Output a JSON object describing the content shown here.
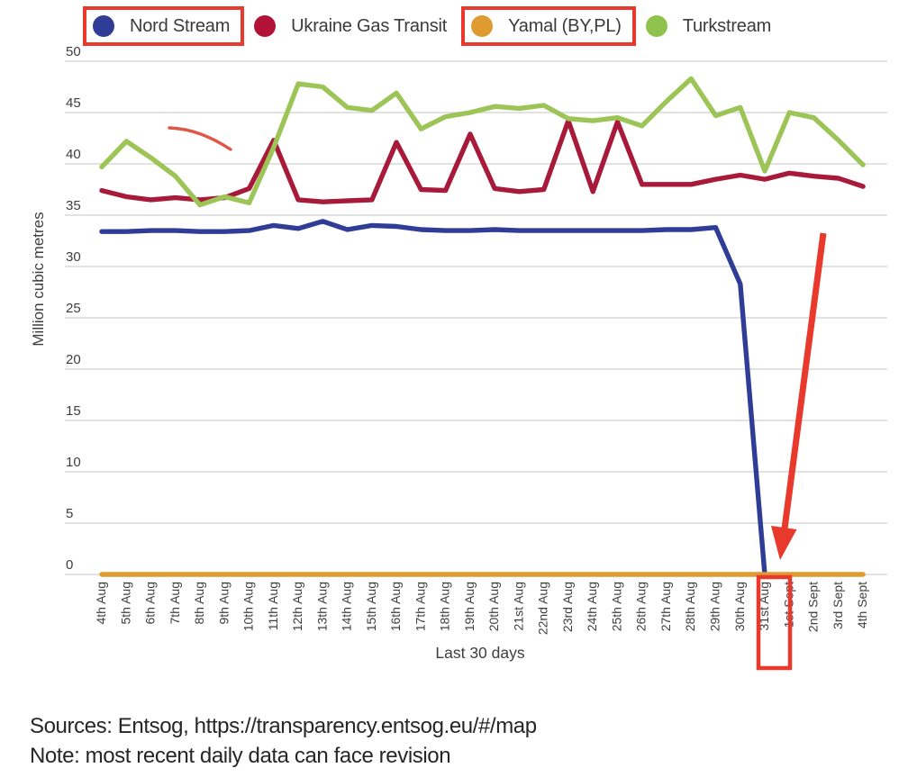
{
  "legend": {
    "items": [
      {
        "label": "Nord Stream",
        "color": "#2f3d96",
        "highlighted": true
      },
      {
        "label": "Ukraine Gas Transit",
        "color": "#b11235",
        "highlighted": false
      },
      {
        "label": "Yamal (BY,PL)",
        "color": "#df9a30",
        "highlighted": true
      },
      {
        "label": "Turkstream",
        "color": "#8fc34d",
        "highlighted": false
      }
    ],
    "highlight_color": "#e8392c"
  },
  "chart_data": {
    "type": "line",
    "title": "",
    "xlabel": "Last 30 days",
    "ylabel": "Million cubic metres",
    "ylim": [
      0,
      50
    ],
    "ytick_step": 5,
    "grid": true,
    "legend_position": "top",
    "categories": [
      "4th Aug",
      "5th Aug",
      "6th Aug",
      "7th Aug",
      "8th Aug",
      "9th Aug",
      "10th Aug",
      "11th Aug",
      "12th Aug",
      "13th Aug",
      "14th Aug",
      "15th Aug",
      "16th Aug",
      "17th Aug",
      "18th Aug",
      "19th Aug",
      "20th Aug",
      "21st Aug",
      "22nd Aug",
      "23rd Aug",
      "24th Aug",
      "25th Aug",
      "26th Aug",
      "27th Aug",
      "28th Aug",
      "29th Aug",
      "30th Aug",
      "31st Aug",
      "1st Sept",
      "2nd Sept",
      "3rd Sept",
      "4th Sept"
    ],
    "series": [
      {
        "name": "Nord Stream",
        "color": "#2f3d96",
        "values": [
          33.4,
          33.4,
          33.5,
          33.5,
          33.4,
          33.4,
          33.5,
          34.0,
          33.7,
          34.4,
          33.6,
          34.0,
          33.9,
          33.6,
          33.5,
          33.5,
          33.6,
          33.5,
          33.5,
          33.5,
          33.5,
          33.5,
          33.5,
          33.6,
          33.6,
          33.8,
          28.3,
          0,
          null,
          null,
          null,
          null
        ]
      },
      {
        "name": "Ukraine Gas Transit",
        "color": "#a81a3a",
        "values": [
          37.4,
          36.8,
          36.5,
          36.7,
          36.5,
          36.7,
          37.6,
          42.3,
          36.5,
          36.3,
          36.4,
          36.5,
          42.1,
          37.5,
          37.4,
          42.9,
          37.6,
          37.3,
          37.5,
          44.2,
          37.3,
          44.1,
          38.0,
          38.0,
          38.0,
          38.5,
          38.9,
          38.5,
          39.1,
          38.8,
          38.6,
          37.8
        ]
      },
      {
        "name": "Yamal (BY,PL)",
        "color": "#df9a30",
        "values": [
          0,
          0,
          0,
          0,
          0,
          0,
          0,
          0,
          0,
          0,
          0,
          0,
          0,
          0,
          0,
          0,
          0,
          0,
          0,
          0,
          0,
          0,
          0,
          0,
          0,
          0,
          0,
          0,
          0,
          0,
          0,
          0
        ]
      },
      {
        "name": "Turkstream",
        "color": "#9cc456",
        "values": [
          39.7,
          42.2,
          40.6,
          38.8,
          36.0,
          36.8,
          36.2,
          41.6,
          47.8,
          47.5,
          45.5,
          45.2,
          46.9,
          43.4,
          44.6,
          45.0,
          45.6,
          45.4,
          45.7,
          44.4,
          44.2,
          44.5,
          43.7,
          46.1,
          48.3,
          44.7,
          45.5,
          39.3,
          45.0,
          44.5,
          42.3,
          39.9
        ]
      }
    ],
    "annotations": {
      "legend_highlight_boxes": [
        "Nord Stream",
        "Yamal (BY,PL)"
      ],
      "x_label_highlight_box": "31st Aug",
      "arrow": {
        "target_category": "31st Aug",
        "target_value": 0,
        "color": "#e8392c"
      },
      "curve_mark": {
        "near_categories": [
          "7th Aug",
          "8th Aug",
          "9th Aug"
        ],
        "approx_values": [
          43.4,
          41.3
        ],
        "color": "#dc4936"
      }
    }
  },
  "footer": {
    "sources_line": "Sources: Entsog, https://transparency.entsog.eu/#/map",
    "note_line": "Note: most recent daily data can face revision"
  }
}
